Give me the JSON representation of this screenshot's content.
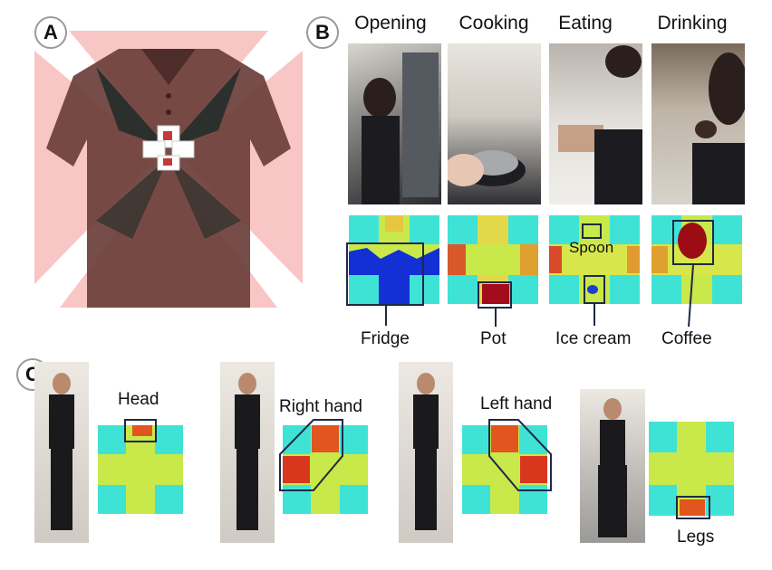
{
  "panel_a": {
    "badge": "A"
  },
  "panel_b": {
    "badge": "B",
    "activities": [
      {
        "title": "Opening",
        "object": "Fridge"
      },
      {
        "title": "Cooking",
        "object": "Pot"
      },
      {
        "title": "Eating",
        "object": "Ice cream",
        "extra": "Spoon"
      },
      {
        "title": "Drinking",
        "object": "Coffee"
      }
    ]
  },
  "panel_c": {
    "badge": "C",
    "poses": [
      {
        "label": "Head"
      },
      {
        "label": "Right hand"
      },
      {
        "label": "Left hand"
      },
      {
        "label": "Legs"
      }
    ]
  },
  "colors": {
    "heat_bg": "#3fe3d6",
    "heat_mid": "#c9e84a",
    "heat_hot": "#d4281c",
    "shirt": "#6b3e3a",
    "fov": "#f6b6b4"
  }
}
